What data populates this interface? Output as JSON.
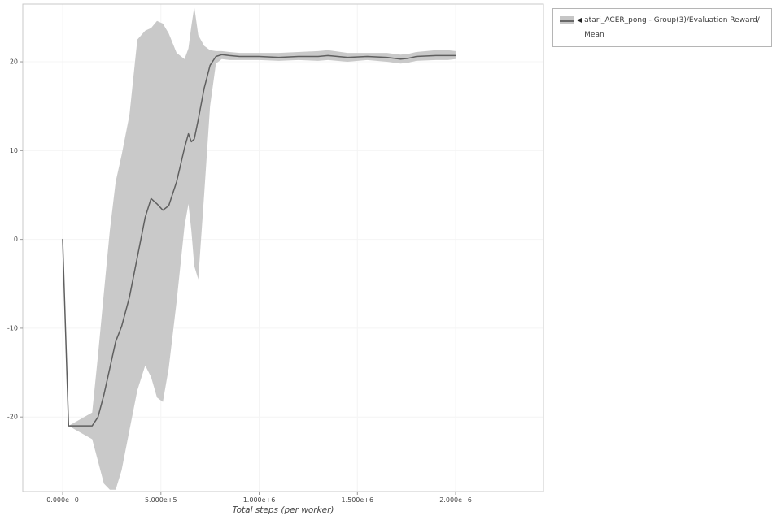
{
  "page": {
    "background": "#ffffff"
  },
  "legend": {
    "collapse_icon": "◀",
    "label": "atari_ACER_pong - Group(3)/Evaluation Reward/Mean"
  },
  "chart_data": {
    "type": "line",
    "title": "",
    "xlabel": "Total steps (per worker)",
    "ylabel": "",
    "grid": true,
    "legend_position": "top-right-outside",
    "xlim": [
      -203000,
      2447000
    ],
    "ylim": [
      -28.4,
      26.5
    ],
    "x_ticks": {
      "values": [
        0,
        500000,
        1000000,
        1500000,
        2000000
      ],
      "labels": [
        "0.000e+0",
        "5.000e+5",
        "1.000e+6",
        "1.500e+6",
        "2.000e+6"
      ]
    },
    "y_ticks": {
      "values": [
        -20,
        -10,
        0,
        10,
        20
      ],
      "labels": [
        "-20",
        "-10",
        "0",
        "10",
        "20"
      ]
    },
    "series": [
      {
        "name": "atari_ACER_pong - Group(3)/Evaluation Reward/Mean",
        "x": [
          0,
          30000,
          150000,
          180000,
          210000,
          240000,
          270000,
          300000,
          340000,
          380000,
          420000,
          450000,
          480000,
          510000,
          540000,
          580000,
          620000,
          640000,
          655000,
          670000,
          690000,
          720000,
          750000,
          780000,
          810000,
          850000,
          900000,
          1000000,
          1100000,
          1200000,
          1300000,
          1350000,
          1450000,
          1550000,
          1650000,
          1720000,
          1760000,
          1800000,
          1900000,
          1960000,
          2000000
        ],
        "mean": [
          0,
          -21,
          -21,
          -20,
          -17.5,
          -14.5,
          -11.5,
          -9.8,
          -6.5,
          -2,
          2.5,
          4.6,
          4.0,
          3.3,
          3.8,
          6.5,
          10.3,
          11.9,
          11.0,
          11.3,
          13.5,
          17,
          19.6,
          20.6,
          20.8,
          20.7,
          20.6,
          20.6,
          20.5,
          20.6,
          20.6,
          20.7,
          20.5,
          20.6,
          20.5,
          20.3,
          20.4,
          20.6,
          20.7,
          20.7,
          20.7
        ],
        "upper": [
          0,
          -21,
          -19.5,
          -13,
          -6,
          1,
          6.5,
          9.5,
          14,
          22.5,
          23.5,
          23.8,
          24.6,
          24.3,
          23.2,
          21.0,
          20.3,
          21.5,
          24,
          26.2,
          23,
          21.8,
          21.3,
          21.2,
          21.2,
          21.1,
          21.0,
          21.0,
          21.0,
          21.1,
          21.2,
          21.3,
          21.0,
          21.0,
          21.0,
          20.8,
          20.9,
          21.1,
          21.3,
          21.3,
          21.2
        ],
        "lower": [
          0,
          -21,
          -22.5,
          -25,
          -27.5,
          -28.2,
          -28.2,
          -26,
          -21.5,
          -17,
          -14.2,
          -15.5,
          -17.8,
          -18.3,
          -14.5,
          -7,
          1.5,
          4,
          1,
          -3,
          -4.5,
          5,
          15,
          19.8,
          20.3,
          20.2,
          20.2,
          20.2,
          20.1,
          20.2,
          20.1,
          20.2,
          20.0,
          20.2,
          20.0,
          19.8,
          19.9,
          20.1,
          20.2,
          20.2,
          20.3
        ]
      }
    ],
    "colors": {
      "line": "#5f5f5f",
      "band": "#c9c9c9",
      "axis": "#c9c9c9",
      "tick_mark": "#9a9a9a",
      "grid": "#f4f4f4",
      "tick_text": "#444444"
    }
  }
}
